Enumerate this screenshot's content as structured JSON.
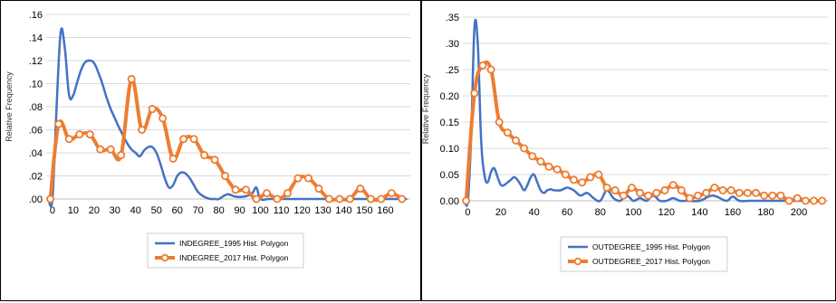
{
  "chart_data": [
    {
      "type": "line",
      "ylabel": "Relative Frequency",
      "xlabel": "",
      "xlim": [
        -3,
        172
      ],
      "ylim": [
        0,
        0.16
      ],
      "x_ticks": [
        "0",
        "10",
        "20",
        "30",
        "40",
        "50",
        "60",
        "70",
        "80",
        "90",
        "100",
        "110",
        "120",
        "130",
        "140",
        "150",
        "160"
      ],
      "y_ticks": [
        ".00",
        ".02",
        ".04",
        ".06",
        ".08",
        ".10",
        ".12",
        ".14",
        ".16"
      ],
      "grid": true,
      "legend_position": "bottom",
      "series": [
        {
          "name": "INDEGREE_1995 Hist. Polygon",
          "color": "#4472C4",
          "markers": false,
          "x": [
            -2,
            0,
            2,
            4,
            6,
            8,
            10,
            12,
            14,
            16,
            18,
            20,
            22,
            24,
            26,
            28,
            30,
            32,
            34,
            36,
            38,
            40,
            42,
            44,
            46,
            48,
            50,
            52,
            54,
            56,
            58,
            60,
            62,
            64,
            66,
            68,
            70,
            72,
            74,
            76,
            78,
            80,
            84,
            88,
            92,
            96,
            98,
            100,
            104,
            110,
            120,
            130,
            140,
            150,
            160,
            170
          ],
          "y": [
            0.0,
            0.0,
            0.08,
            0.145,
            0.13,
            0.09,
            0.09,
            0.102,
            0.113,
            0.119,
            0.12,
            0.118,
            0.11,
            0.1,
            0.088,
            0.078,
            0.07,
            0.062,
            0.055,
            0.048,
            0.043,
            0.04,
            0.037,
            0.042,
            0.045,
            0.045,
            0.04,
            0.03,
            0.018,
            0.01,
            0.012,
            0.02,
            0.023,
            0.022,
            0.018,
            0.012,
            0.006,
            0.003,
            0.001,
            0.0,
            0.0,
            0.0,
            0.004,
            0.002,
            0.002,
            0.005,
            0.01,
            0.0,
            0.0,
            0.0,
            0.0,
            0.0,
            0.0,
            0.0,
            0.0,
            0.0
          ]
        },
        {
          "name": "INDEGREE_2017 Hist. Polygon",
          "color": "#ED7D31",
          "markers": true,
          "x": [
            -1,
            3,
            8,
            13,
            18,
            23,
            28,
            33,
            38,
            43,
            48,
            53,
            58,
            63,
            68,
            73,
            78,
            83,
            88,
            93,
            98,
            103,
            108,
            113,
            118,
            123,
            128,
            133,
            138,
            143,
            148,
            153,
            158,
            163,
            168
          ],
          "y": [
            0.0,
            0.065,
            0.052,
            0.056,
            0.056,
            0.043,
            0.043,
            0.038,
            0.104,
            0.06,
            0.078,
            0.07,
            0.035,
            0.052,
            0.052,
            0.038,
            0.034,
            0.02,
            0.008,
            0.008,
            0.0,
            0.005,
            0.0,
            0.005,
            0.018,
            0.018,
            0.009,
            0.0,
            0.0,
            0.0,
            0.009,
            0.0,
            0.0,
            0.005,
            0.0
          ]
        }
      ]
    },
    {
      "type": "line",
      "ylabel": "Relative Frequency",
      "xlabel": "",
      "xlim": [
        -3,
        218
      ],
      "ylim": [
        0,
        0.35
      ],
      "x_ticks": [
        "0",
        "20",
        "40",
        "60",
        "80",
        "100",
        "120",
        "140",
        "160",
        "180",
        "200"
      ],
      "y_ticks": [
        "0.00",
        "0.05",
        "0.10",
        "0.15",
        "0.20",
        ".25",
        ".30",
        ".35"
      ],
      "grid": true,
      "legend_position": "bottom",
      "series": [
        {
          "name": "OUTDEGREE_1995 Hist. Polygon",
          "color": "#4472C4",
          "markers": false,
          "x": [
            -2,
            0,
            2,
            4,
            6,
            8,
            10,
            12,
            14,
            16,
            18,
            20,
            22,
            24,
            26,
            28,
            30,
            32,
            34,
            36,
            38,
            40,
            42,
            44,
            46,
            48,
            50,
            52,
            56,
            60,
            64,
            68,
            72,
            76,
            80,
            84,
            88,
            92,
            96,
            100,
            104,
            108,
            112,
            116,
            120,
            124,
            128,
            132,
            140,
            148,
            156,
            160,
            164,
            170,
            180,
            190,
            200,
            210
          ],
          "y": [
            0.0,
            0.0,
            0.12,
            0.33,
            0.3,
            0.12,
            0.05,
            0.035,
            0.055,
            0.062,
            0.045,
            0.03,
            0.03,
            0.035,
            0.04,
            0.045,
            0.04,
            0.03,
            0.02,
            0.03,
            0.045,
            0.05,
            0.035,
            0.02,
            0.015,
            0.02,
            0.022,
            0.02,
            0.02,
            0.025,
            0.02,
            0.01,
            0.015,
            0.005,
            0.0,
            0.02,
            0.005,
            0.0,
            0.01,
            0.0,
            0.005,
            0.0,
            0.01,
            0.0,
            0.0,
            0.005,
            0.0,
            0.0,
            0.0,
            0.01,
            0.0,
            0.008,
            0.0,
            0.0,
            0.0,
            0.0,
            0.0,
            0.0
          ]
        },
        {
          "name": "OUTDEGREE_2017 Hist. Polygon",
          "color": "#ED7D31",
          "markers": true,
          "x": [
            -1,
            4,
            9,
            14,
            19,
            24,
            29,
            34,
            39,
            44,
            49,
            54,
            59,
            64,
            69,
            74,
            79,
            84,
            89,
            94,
            99,
            104,
            109,
            114,
            119,
            124,
            129,
            134,
            139,
            144,
            149,
            154,
            159,
            164,
            169,
            174,
            179,
            184,
            189,
            194,
            199,
            204,
            209,
            214
          ],
          "y": [
            0.0,
            0.205,
            0.258,
            0.25,
            0.15,
            0.13,
            0.115,
            0.1,
            0.085,
            0.075,
            0.065,
            0.06,
            0.05,
            0.04,
            0.035,
            0.045,
            0.05,
            0.025,
            0.02,
            0.01,
            0.025,
            0.015,
            0.01,
            0.015,
            0.02,
            0.03,
            0.02,
            0.005,
            0.01,
            0.015,
            0.025,
            0.02,
            0.02,
            0.015,
            0.015,
            0.015,
            0.01,
            0.01,
            0.01,
            0.0,
            0.005,
            0.0,
            0.0,
            0.0
          ]
        }
      ]
    }
  ]
}
